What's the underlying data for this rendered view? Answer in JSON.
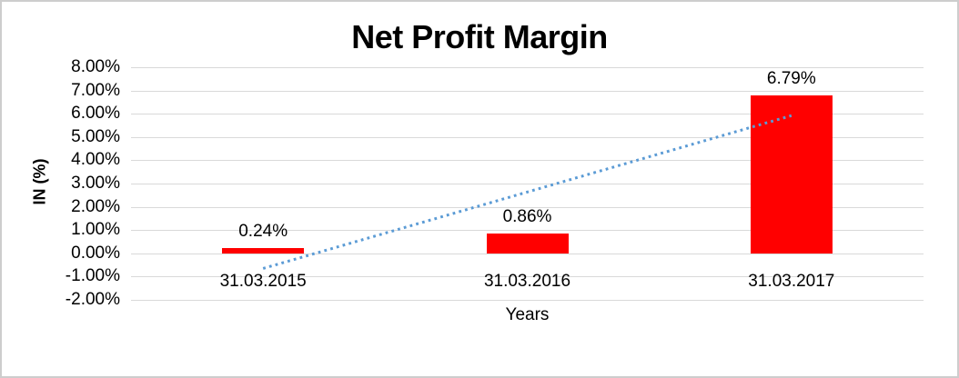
{
  "chart_data": {
    "type": "bar",
    "title": "Net Profit Margin",
    "xlabel": "Years",
    "ylabel": "IN (%)",
    "categories": [
      "31.03.2015",
      "31.03.2016",
      "31.03.2017"
    ],
    "values": [
      0.24,
      0.86,
      6.79
    ],
    "data_labels": [
      "0.24%",
      "0.86%",
      "6.79%"
    ],
    "ylim": [
      -2,
      8
    ],
    "ytick_step": 1,
    "yticks": [
      8,
      7,
      6,
      5,
      4,
      3,
      2,
      1,
      0,
      -1,
      -2
    ],
    "ytick_labels": [
      "8.00%",
      "7.00%",
      "6.00%",
      "5.00%",
      "4.00%",
      "3.00%",
      "2.00%",
      "1.00%",
      "0.00%",
      "-1.00%",
      "-2.00%"
    ],
    "grid": true,
    "legend": "none",
    "bar_color": "#ff0000",
    "gridline_color": "#d9d9d9",
    "trendline": {
      "type": "linear",
      "style": "dotted",
      "color": "#5b9bd5",
      "start_category_index": 0,
      "end_category_index": 2,
      "start_value": -0.65,
      "end_value": 5.92
    }
  }
}
